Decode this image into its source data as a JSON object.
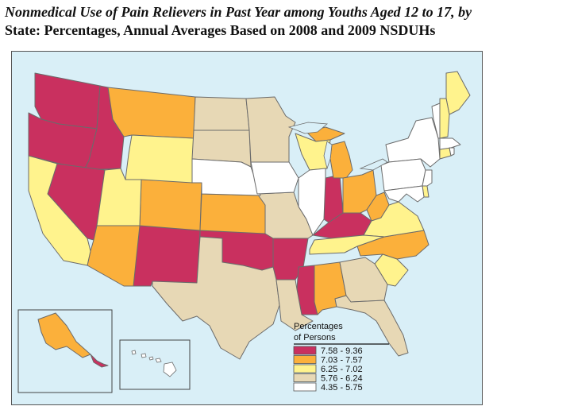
{
  "title": {
    "line1": "Nonmedical Use of Pain Relievers in Past Year among Youths Aged 12 to 17, by",
    "line2": "State: Percentages, Annual Averages Based on 2008 and 2009 NSDUHs"
  },
  "legend": {
    "title_line1": "Percentages",
    "title_line2": "of Persons",
    "items": [
      {
        "label": "7.58 - 9.36",
        "color": "#c9305f"
      },
      {
        "label": "7.03 - 7.57",
        "color": "#fbb03b"
      },
      {
        "label": "6.25 - 7.02",
        "color": "#fff38d"
      },
      {
        "label": "5.76 - 6.24",
        "color": "#e7d8b5"
      },
      {
        "label": "4.35 - 5.75",
        "color": "#ffffff"
      }
    ]
  },
  "colors": {
    "background_water": "#d9eff7",
    "border": "#6b6b6b"
  }
}
